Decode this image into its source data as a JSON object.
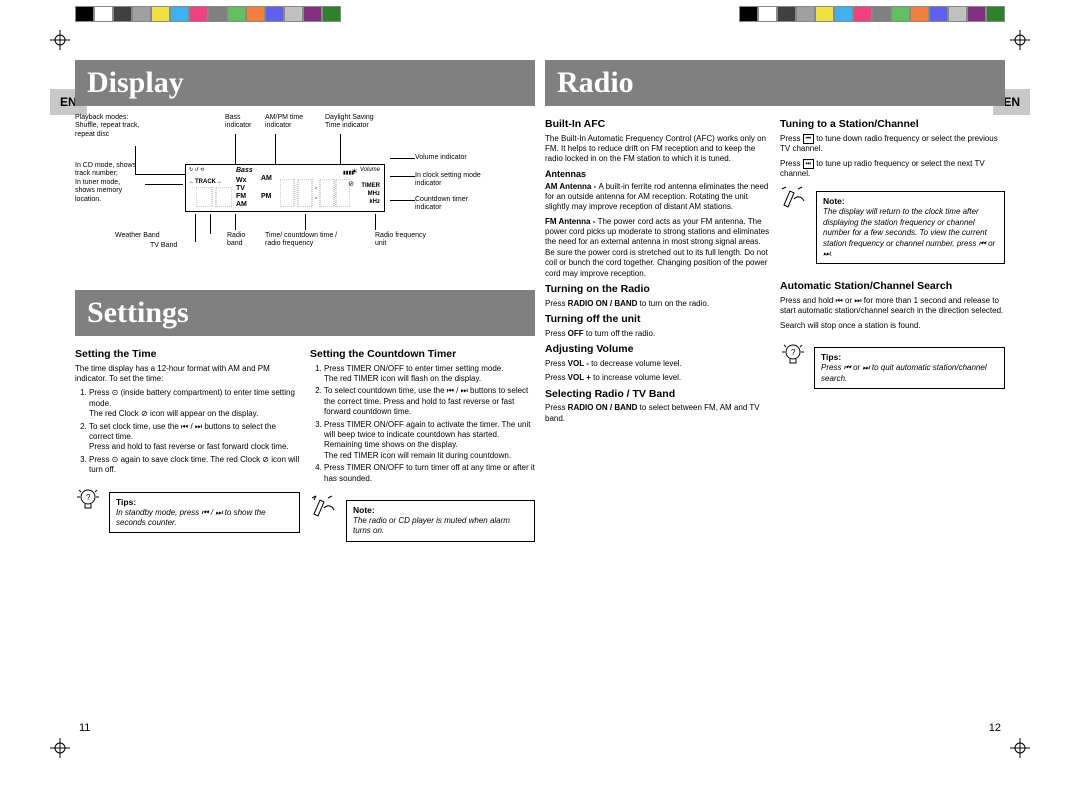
{
  "colorbars": [
    "#000000",
    "#ffffff",
    "#404040",
    "#a0a0a0",
    "#f0e040",
    "#40b0f0",
    "#f04080",
    "#808080",
    "#60c060",
    "#f08040",
    "#6060f0",
    "#c0c0c0",
    "#803080",
    "#308030"
  ],
  "en_label": "EN",
  "page_left_num": "11",
  "page_right_num": "12",
  "left": {
    "title_display": "Display",
    "title_settings": "Settings",
    "diagram": {
      "playback_modes": "Playback modes:\nShuffle, repeat track,\nrepeat disc",
      "bass": "Bass\nindicator",
      "ampm": "AM/PM time\nindicator",
      "daylight": "Daylight Saving\nTime indicator",
      "volume": "Volume indicator",
      "cd_mode": "In CD mode, shows\ntrack number;\nIn tuner mode,\nshows memory\nlocation.",
      "clock_setting": "In clock setting mode\nindicator",
      "countdown": "Countdown timer\nindicator",
      "weather": "Weather Band",
      "tvband": "TV Band",
      "radioband": "Radio\nband",
      "time_countdown": "Time/ countdown time /\nradio frequency",
      "radio_freq": "Radio frequency\nunit",
      "lcd_labels": {
        "track": "TRACK",
        "bass": "Bass",
        "wx": "Wx",
        "tv": "TV",
        "fm": "FM",
        "am_top": "AM",
        "pm": "PM",
        "am_bot": "AM",
        "volume": "Volume",
        "timer": "TIMER",
        "mhz": "MHz",
        "khz": "kHz"
      }
    },
    "col1": {
      "h": "Setting the Time",
      "intro": "The time display has a 12-hour format with AM and PM indicator. To set the time:",
      "step1": "Press ⊙ (inside battery compartment) to enter time setting mode.",
      "step1b": "The red Clock ⊘ icon will appear on the display.",
      "step2": "To set clock time, use the ⏮ / ⏭ buttons to select the correct time.",
      "step2b": "Press and hold to fast reverse or fast forward clock time.",
      "step3": "Press ⊙ again to save clock time. The red Clock ⊘ icon will turn off.",
      "tips_hdr": "Tips:",
      "tips_body": "In standby mode, press ⏮ / ⏭ to show the seconds counter."
    },
    "col2": {
      "h": "Setting the Countdown Timer",
      "step1": "Press TIMER ON/OFF to enter timer setting mode.",
      "step1b": "The red TIMER icon will flash on the display.",
      "step2": "To select countdown time, use the ⏮ / ⏭ buttons to select the correct time. Press and hold to fast reverse or fast forward countdown time.",
      "step3": "Press TIMER ON/OFF again to activate the timer. The unit will beep twice to indicate countdown has started. Remaining time shows on the display.",
      "step3b": "The red TIMER icon will remain lit during countdown.",
      "step4": "Press TIMER ON/OFF to turn timer off at any time or after it has sounded.",
      "note_hdr": "Note:",
      "note_body": "The radio or CD player is muted when alarm turns on."
    }
  },
  "right": {
    "title_radio": "Radio",
    "col1": {
      "h_afc": "Built-In AFC",
      "afc_body": "The Built-In Automatic Frequency Control (AFC) works only on FM. It helps to reduce drift on FM reception and to keep the radio locked in on the FM station to which it is tuned.",
      "h_ant": "Antennas",
      "am_ant": "AM Antenna - A built-in ferrite rod antenna eliminates the need for an outside antenna for AM reception. Rotating the unit slightly may improve reception of distant AM stations.",
      "fm_ant": "FM Antenna - The power cord acts as your FM antenna. The power cord picks up moderate to strong stations and eliminates the need for an external antenna in most strong signal areas. Be sure the power cord is stretched out to its full length. Do not coil or bunch the cord together. Changing position of the power cord may improve reception.",
      "h_on": "Turning on the Radio",
      "on_body": "Press RADIO ON / BAND to turn on the radio.",
      "h_off": "Turning off the unit",
      "off_body": "Press OFF to turn off the radio.",
      "h_vol": "Adjusting Volume",
      "vol_dn": "Press VOL - to decrease volume level.",
      "vol_up": "Press VOL + to increase volume level.",
      "h_band": "Selecting Radio / TV Band",
      "band_body": "Press RADIO ON / BAND to select between FM, AM and TV band."
    },
    "col2": {
      "h_tune": "Tuning to a Station/Channel",
      "tune_dn": "Press ⏮ to tune down radio frequency or select the previous TV channel.",
      "tune_up": "Press ⏭ to tune up radio frequency or select the next TV channel.",
      "note_hdr": "Note:",
      "note_body": "The display will return to the clock time after displaying the station frequency or channel number for a few seconds. To view the current station frequency or channel number, press ⏮ or ⏭.",
      "h_auto": "Automatic Station/Channel Search",
      "auto1": "Press and hold ⏮ or ⏭ for more than 1 second and release to start automatic station/channel search in the direction selected.",
      "auto2": "Search will stop once a station is found.",
      "tips_hdr": "Tips:",
      "tips_body": "Press ⏮ or ⏭ to quit automatic station/channel search."
    }
  }
}
